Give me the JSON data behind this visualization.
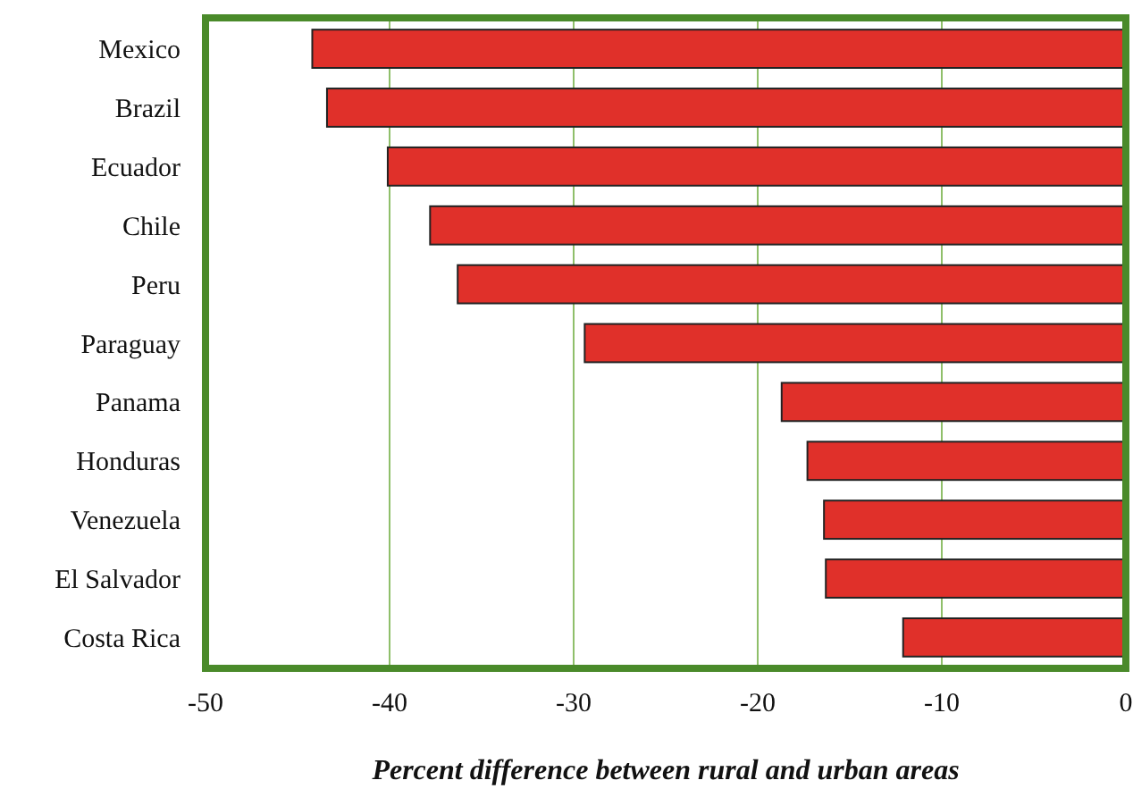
{
  "chart_data": {
    "type": "bar",
    "orientation": "horizontal",
    "xlabel": "Percent difference between rural and urban areas",
    "categories": [
      "Mexico",
      "Brazil",
      "Ecuador",
      "Chile",
      "Peru",
      "Paraguay",
      "Panama",
      "Honduras",
      "Venezuela",
      "El Salvador",
      "Costa Rica"
    ],
    "values": [
      -44.2,
      -43.4,
      -40.1,
      -37.8,
      -36.3,
      -29.4,
      -18.7,
      -17.3,
      -16.4,
      -16.3,
      -12.1
    ],
    "color": "#e0302a",
    "xlim": [
      -50,
      0
    ],
    "xticks": [
      -50,
      -40,
      -30,
      -20,
      -10,
      0
    ],
    "grid": "x"
  }
}
